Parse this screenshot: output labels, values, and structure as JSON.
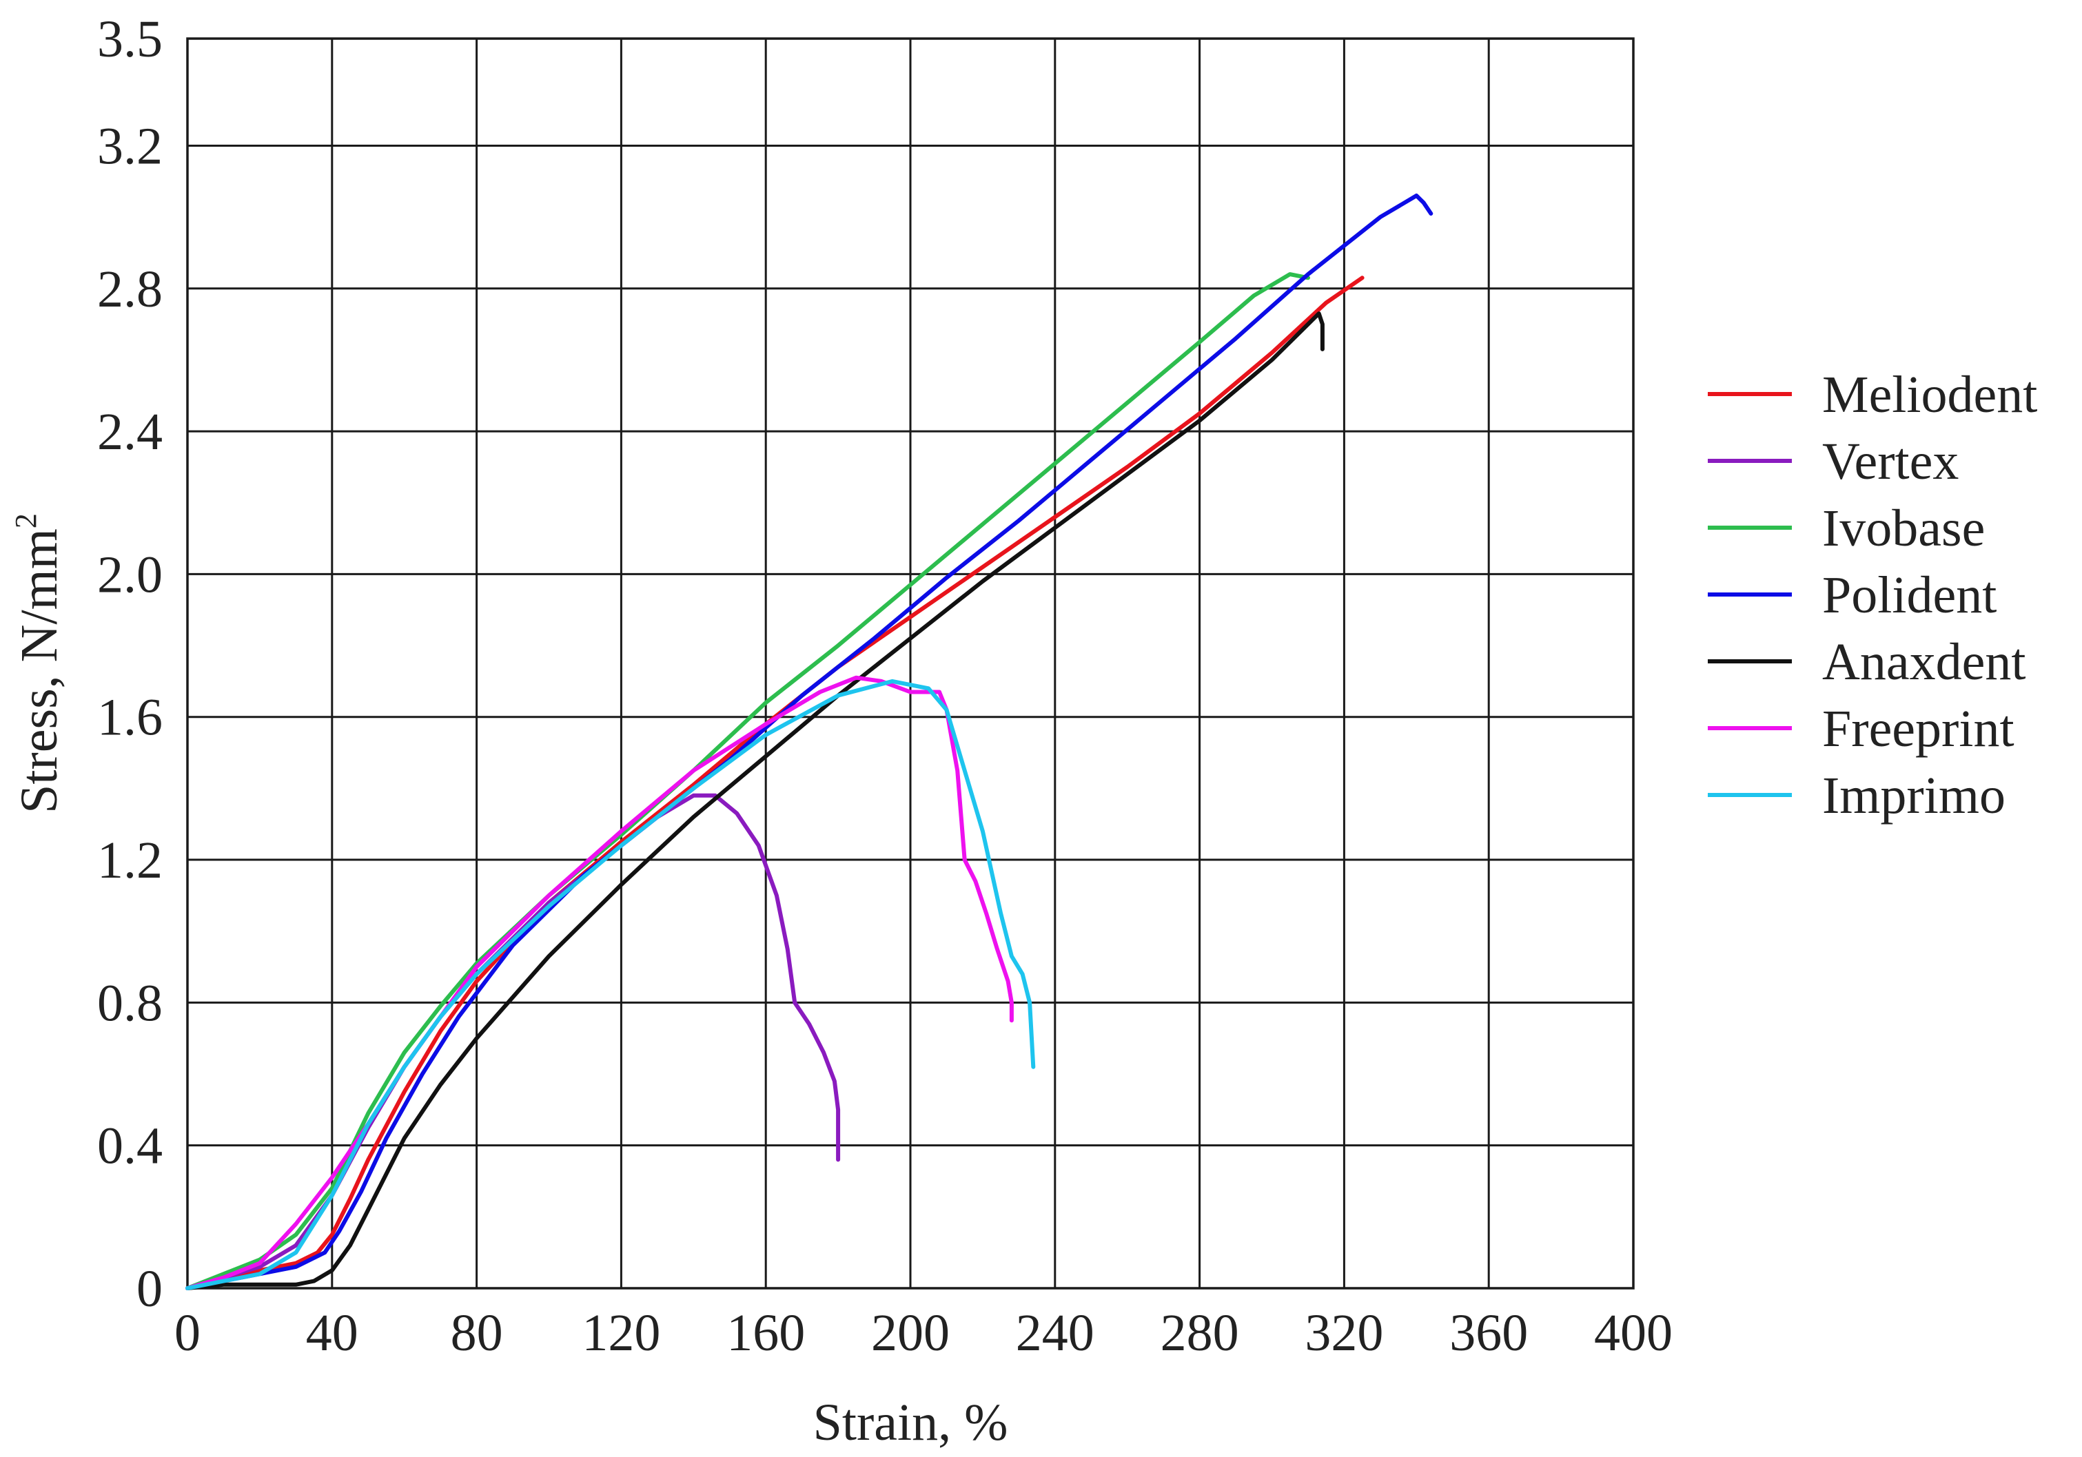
{
  "chart_data": {
    "type": "line",
    "xlabel": "Strain, %",
    "ylabel": "Stress, N/mm",
    "ylabel_superscript": "2",
    "xlim": [
      0,
      400
    ],
    "ylim": [
      0,
      3.5
    ],
    "x_ticks": [
      0,
      40,
      80,
      120,
      160,
      200,
      240,
      280,
      320,
      360,
      400
    ],
    "x_tick_labels": [
      "0",
      "40",
      "80",
      "120",
      "160",
      "200",
      "240",
      "280",
      "320",
      "360",
      "400"
    ],
    "y_ticks": [
      0,
      0.4,
      0.8,
      1.2,
      1.6,
      2.0,
      2.4,
      2.8,
      3.2,
      3.5
    ],
    "y_tick_labels": [
      "0",
      "0.4",
      "0.8",
      "1.2",
      "1.6",
      "2.0",
      "2.4",
      "2.8",
      "3.2",
      "3.5"
    ],
    "grid": true,
    "legend_position": "right",
    "series": [
      {
        "name": "Meliodent",
        "color": "#e8141c",
        "points": [
          [
            0,
            0
          ],
          [
            10,
            0.02
          ],
          [
            20,
            0.05
          ],
          [
            30,
            0.07
          ],
          [
            36,
            0.1
          ],
          [
            40,
            0.15
          ],
          [
            45,
            0.25
          ],
          [
            50,
            0.36
          ],
          [
            60,
            0.55
          ],
          [
            70,
            0.72
          ],
          [
            80,
            0.86
          ],
          [
            100,
            1.08
          ],
          [
            120,
            1.25
          ],
          [
            140,
            1.41
          ],
          [
            160,
            1.58
          ],
          [
            180,
            1.74
          ],
          [
            200,
            1.88
          ],
          [
            220,
            2.02
          ],
          [
            240,
            2.16
          ],
          [
            260,
            2.3
          ],
          [
            280,
            2.45
          ],
          [
            300,
            2.62
          ],
          [
            315,
            2.76
          ],
          [
            325,
            2.83
          ]
        ]
      },
      {
        "name": "Vertex",
        "color": "#8a1bbf",
        "points": [
          [
            0,
            0
          ],
          [
            10,
            0.03
          ],
          [
            20,
            0.06
          ],
          [
            30,
            0.12
          ],
          [
            40,
            0.26
          ],
          [
            50,
            0.45
          ],
          [
            60,
            0.62
          ],
          [
            70,
            0.76
          ],
          [
            80,
            0.88
          ],
          [
            100,
            1.08
          ],
          [
            120,
            1.24
          ],
          [
            130,
            1.32
          ],
          [
            140,
            1.38
          ],
          [
            146,
            1.38
          ],
          [
            152,
            1.33
          ],
          [
            158,
            1.24
          ],
          [
            163,
            1.1
          ],
          [
            166,
            0.95
          ],
          [
            168,
            0.8
          ],
          [
            172,
            0.74
          ],
          [
            176,
            0.66
          ],
          [
            179,
            0.58
          ],
          [
            180,
            0.5
          ],
          [
            180,
            0.36
          ]
        ]
      },
      {
        "name": "Ivobase",
        "color": "#2dbd4e",
        "points": [
          [
            0,
            0
          ],
          [
            10,
            0.04
          ],
          [
            20,
            0.08
          ],
          [
            30,
            0.15
          ],
          [
            40,
            0.28
          ],
          [
            50,
            0.49
          ],
          [
            60,
            0.66
          ],
          [
            70,
            0.79
          ],
          [
            80,
            0.91
          ],
          [
            100,
            1.1
          ],
          [
            120,
            1.27
          ],
          [
            140,
            1.45
          ],
          [
            160,
            1.64
          ],
          [
            180,
            1.8
          ],
          [
            200,
            1.97
          ],
          [
            220,
            2.14
          ],
          [
            240,
            2.31
          ],
          [
            260,
            2.48
          ],
          [
            280,
            2.65
          ],
          [
            295,
            2.78
          ],
          [
            305,
            2.84
          ],
          [
            310,
            2.83
          ]
        ]
      },
      {
        "name": "Polident",
        "color": "#0c0ce6",
        "points": [
          [
            0,
            0
          ],
          [
            10,
            0.02
          ],
          [
            20,
            0.04
          ],
          [
            30,
            0.06
          ],
          [
            38,
            0.1
          ],
          [
            42,
            0.16
          ],
          [
            48,
            0.27
          ],
          [
            55,
            0.42
          ],
          [
            65,
            0.6
          ],
          [
            75,
            0.76
          ],
          [
            90,
            0.96
          ],
          [
            110,
            1.16
          ],
          [
            130,
            1.32
          ],
          [
            150,
            1.48
          ],
          [
            170,
            1.66
          ],
          [
            190,
            1.82
          ],
          [
            210,
            1.99
          ],
          [
            230,
            2.15
          ],
          [
            250,
            2.32
          ],
          [
            270,
            2.49
          ],
          [
            290,
            2.66
          ],
          [
            310,
            2.84
          ],
          [
            330,
            3.0
          ],
          [
            340,
            3.06
          ],
          [
            342,
            3.04
          ],
          [
            344,
            3.01
          ]
        ]
      },
      {
        "name": "Anaxdent",
        "color": "#111111",
        "points": [
          [
            0,
            0
          ],
          [
            10,
            0.01
          ],
          [
            20,
            0.01
          ],
          [
            30,
            0.01
          ],
          [
            35,
            0.02
          ],
          [
            40,
            0.05
          ],
          [
            45,
            0.12
          ],
          [
            50,
            0.22
          ],
          [
            60,
            0.42
          ],
          [
            70,
            0.57
          ],
          [
            80,
            0.7
          ],
          [
            100,
            0.93
          ],
          [
            120,
            1.13
          ],
          [
            140,
            1.32
          ],
          [
            160,
            1.49
          ],
          [
            180,
            1.66
          ],
          [
            200,
            1.82
          ],
          [
            220,
            1.98
          ],
          [
            240,
            2.13
          ],
          [
            260,
            2.28
          ],
          [
            280,
            2.43
          ],
          [
            300,
            2.6
          ],
          [
            310,
            2.7
          ],
          [
            313,
            2.73
          ],
          [
            314,
            2.7
          ],
          [
            314,
            2.63
          ]
        ]
      },
      {
        "name": "Freeprint",
        "color": "#ee11ee",
        "points": [
          [
            0,
            0
          ],
          [
            10,
            0.03
          ],
          [
            20,
            0.07
          ],
          [
            30,
            0.18
          ],
          [
            40,
            0.31
          ],
          [
            50,
            0.46
          ],
          [
            60,
            0.62
          ],
          [
            70,
            0.76
          ],
          [
            80,
            0.9
          ],
          [
            100,
            1.1
          ],
          [
            120,
            1.28
          ],
          [
            140,
            1.45
          ],
          [
            160,
            1.58
          ],
          [
            175,
            1.67
          ],
          [
            185,
            1.71
          ],
          [
            192,
            1.7
          ],
          [
            200,
            1.67
          ],
          [
            208,
            1.67
          ],
          [
            210,
            1.62
          ],
          [
            213,
            1.45
          ],
          [
            215,
            1.2
          ],
          [
            218,
            1.14
          ],
          [
            221,
            1.05
          ],
          [
            224,
            0.95
          ],
          [
            227,
            0.86
          ],
          [
            228,
            0.8
          ],
          [
            228,
            0.75
          ]
        ]
      },
      {
        "name": "Imprimo",
        "color": "#1ec4ee",
        "points": [
          [
            0,
            0
          ],
          [
            10,
            0.02
          ],
          [
            20,
            0.04
          ],
          [
            30,
            0.1
          ],
          [
            40,
            0.26
          ],
          [
            50,
            0.46
          ],
          [
            60,
            0.62
          ],
          [
            70,
            0.76
          ],
          [
            80,
            0.88
          ],
          [
            100,
            1.07
          ],
          [
            120,
            1.24
          ],
          [
            140,
            1.4
          ],
          [
            160,
            1.55
          ],
          [
            180,
            1.66
          ],
          [
            195,
            1.7
          ],
          [
            205,
            1.68
          ],
          [
            210,
            1.62
          ],
          [
            215,
            1.45
          ],
          [
            220,
            1.28
          ],
          [
            225,
            1.05
          ],
          [
            228,
            0.93
          ],
          [
            231,
            0.88
          ],
          [
            233,
            0.8
          ],
          [
            234,
            0.62
          ]
        ]
      }
    ]
  }
}
